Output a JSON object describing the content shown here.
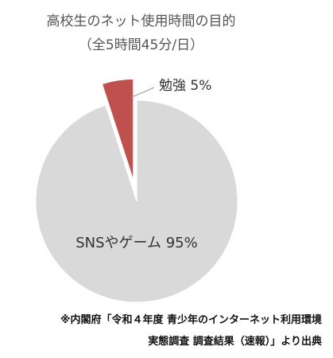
{
  "chart_data": {
    "type": "pie",
    "title": "高校生のネット使用時間の目的",
    "subtitle": "（全5時間45分/日）",
    "slices": [
      {
        "label": "勉強",
        "value": 5,
        "value_text": "5%",
        "color": "#c0504d",
        "exploded": true
      },
      {
        "label": "SNSやゲーム",
        "value": 95,
        "value_text": "95%",
        "color": "#d9d9d9",
        "exploded": false
      }
    ]
  },
  "source": {
    "line1": "※内閣府「令和４年度 青少年のインターネット利用環境",
    "line2": "実態調査 調査結果（速報）」より出典"
  }
}
